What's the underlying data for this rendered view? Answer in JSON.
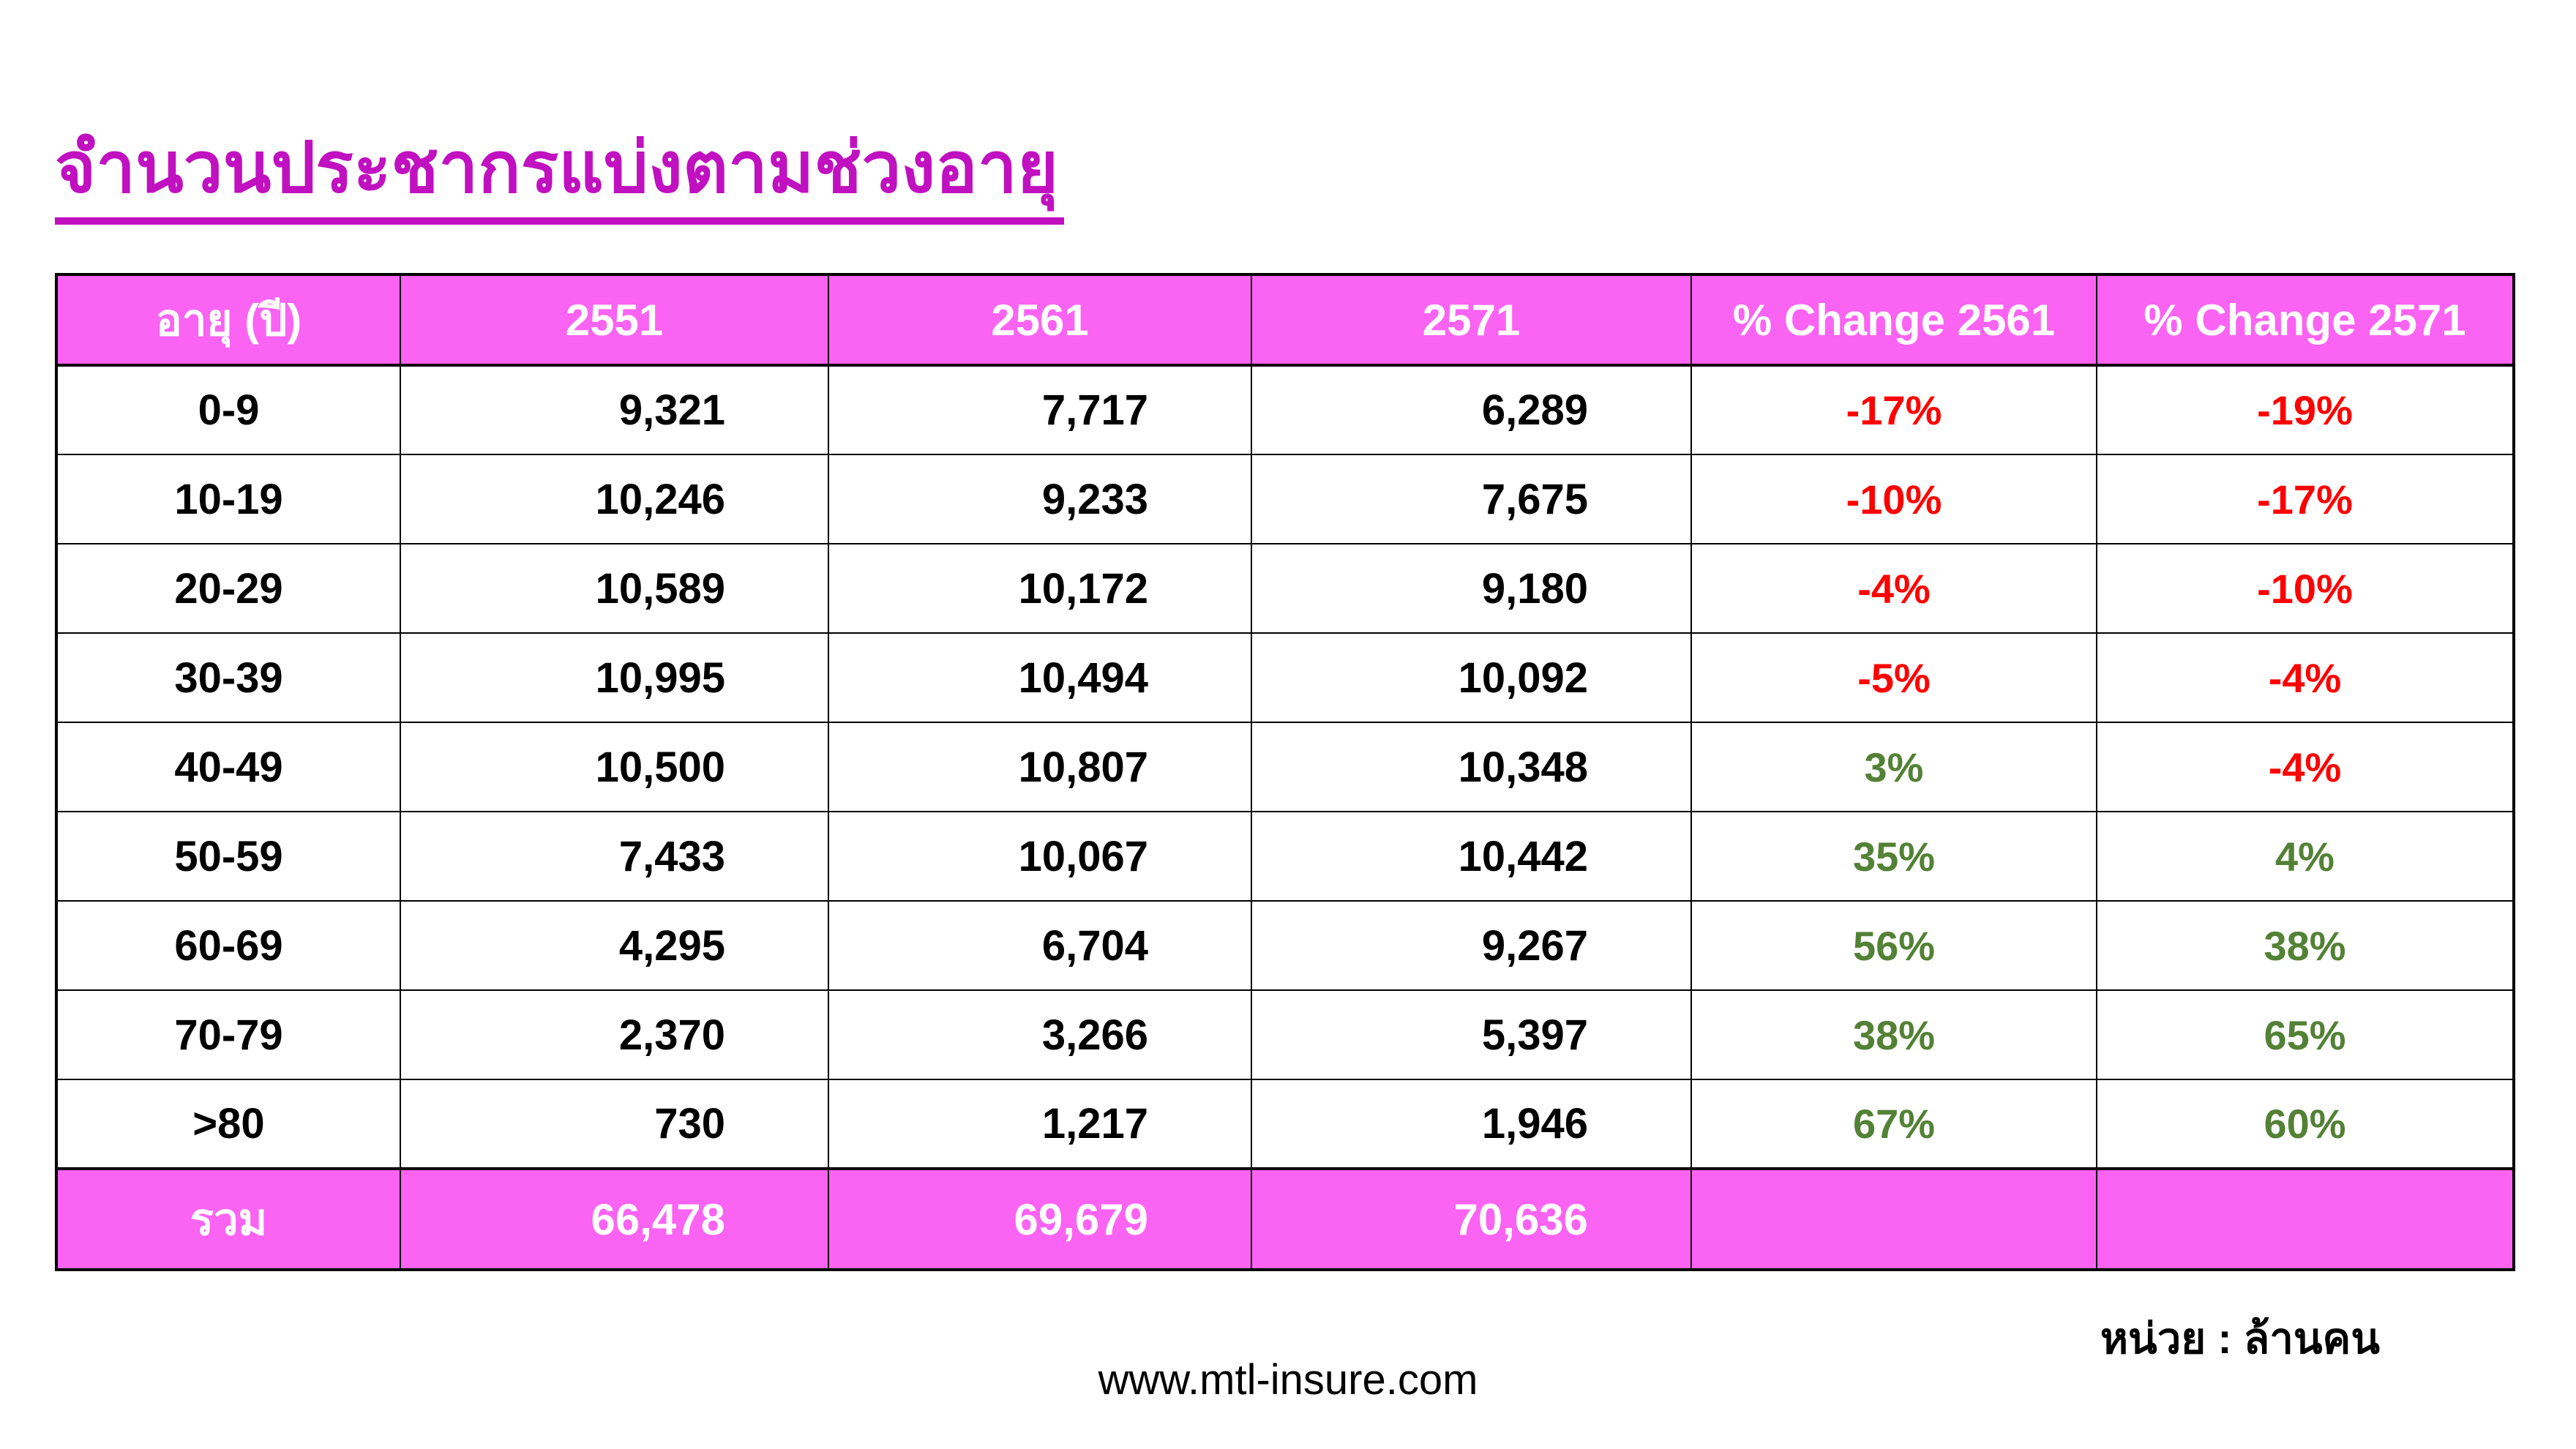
{
  "page": {
    "title": "จำนวนประชากรแบ่งตามช่วงอายุ",
    "unit_note": "หน่วย : ล้านคน",
    "website": "www.mtl-insure.com"
  },
  "colors": {
    "header_bg": "#FB63F2",
    "header_text": "#FFFFFF",
    "title_text": "#C010C0",
    "negative": "#FF0000",
    "positive": "#538135",
    "border": "#000000"
  },
  "chart_data": {
    "type": "table",
    "title": "จำนวนประชากรแบ่งตามช่วงอายุ",
    "unit": "ล้านคน",
    "columns": [
      "อายุ (ปี)",
      "2551",
      "2561",
      "2571",
      "% Change 2561",
      "% Change 2571"
    ],
    "rows": [
      [
        "0-9",
        9321,
        7717,
        6289,
        "-17%",
        "-19%"
      ],
      [
        "10-19",
        10246,
        9233,
        7675,
        "-10%",
        "-17%"
      ],
      [
        "20-29",
        10589,
        10172,
        9180,
        "-4%",
        "-10%"
      ],
      [
        "30-39",
        10995,
        10494,
        10092,
        "-5%",
        "-4%"
      ],
      [
        "40-49",
        10500,
        10807,
        10348,
        "3%",
        "-4%"
      ],
      [
        "50-59",
        7433,
        10067,
        10442,
        "35%",
        "4%"
      ],
      [
        "60-69",
        4295,
        6704,
        9267,
        "56%",
        "38%"
      ],
      [
        "70-79",
        2370,
        3266,
        5397,
        "38%",
        "65%"
      ],
      [
        ">80",
        730,
        1217,
        1946,
        "67%",
        "60%"
      ]
    ],
    "total": [
      "รวม",
      66478,
      69679,
      70636,
      "",
      ""
    ]
  },
  "table": {
    "headers": [
      "อายุ (ปี)",
      "2551",
      "2561",
      "2571",
      "% Change 2561",
      "% Change 2571"
    ],
    "rows": [
      [
        "0-9",
        "9,321",
        "7,717",
        "6,289",
        "-17%",
        "-19%"
      ],
      [
        "10-19",
        "10,246",
        "9,233",
        "7,675",
        "-10%",
        "-17%"
      ],
      [
        "20-29",
        "10,589",
        "10,172",
        "9,180",
        "-4%",
        "-10%"
      ],
      [
        "30-39",
        "10,995",
        "10,494",
        "10,092",
        "-5%",
        "-4%"
      ],
      [
        "40-49",
        "10,500",
        "10,807",
        "10,348",
        "3%",
        "-4%"
      ],
      [
        "50-59",
        "7,433",
        "10,067",
        "10,442",
        "35%",
        "4%"
      ],
      [
        "60-69",
        "4,295",
        "6,704",
        "9,267",
        "56%",
        "38%"
      ],
      [
        "70-79",
        "2,370",
        "3,266",
        "5,397",
        "38%",
        "65%"
      ],
      [
        ">80",
        "730",
        "1,217",
        "1,946",
        "67%",
        "60%"
      ]
    ],
    "total_row": [
      "รวม",
      "66,478",
      "69,679",
      "70,636",
      "",
      ""
    ]
  }
}
